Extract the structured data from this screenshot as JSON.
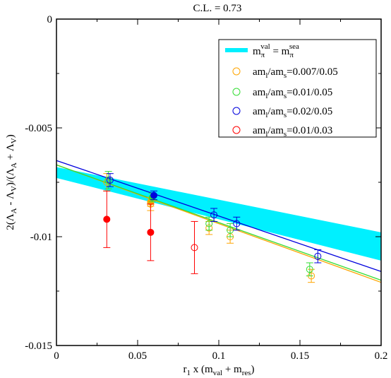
{
  "chart_data": {
    "type": "scatter",
    "title": "C.L. = 0.73",
    "xlabel": "r1 x (mval + mres)",
    "ylabel": "2(ΛA - ΛV)/(ΛA + ΛV)",
    "xlim": [
      0,
      0.2
    ],
    "ylim": [
      -0.015,
      0
    ],
    "x_ticks": [
      "0",
      "0.05",
      "0.1",
      "0.15",
      "0.2"
    ],
    "y_ticks": [
      "0",
      "-0.005",
      "-0.01",
      "-0.015"
    ],
    "grid": false,
    "legend_position": "top-right",
    "band": {
      "name": "mπval = mπsea",
      "color": "#00f0ff",
      "x": [
        0,
        0.2
      ],
      "lower": [
        -0.0073,
        -0.0111
      ],
      "upper": [
        -0.0068,
        -0.0098
      ]
    },
    "series": [
      {
        "name": "aml/ams=0.007/0.05",
        "color": "#ffa500",
        "open": [
          {
            "x": 0.031,
            "y": -0.0075,
            "err": 0.0004
          },
          {
            "x": 0.058,
            "y": -0.0085,
            "err": 0.0003
          },
          {
            "x": 0.094,
            "y": -0.0096,
            "err": 0.0003
          },
          {
            "x": 0.107,
            "y": -0.01,
            "err": 0.0003
          },
          {
            "x": 0.157,
            "y": -0.0118,
            "err": 0.0003
          }
        ],
        "filled": [
          {
            "x": 0.058,
            "y": -0.0084,
            "err": 0.0002
          }
        ],
        "fit": {
          "x": [
            0,
            0.2
          ],
          "y": [
            -0.0067,
            -0.0121
          ]
        }
      },
      {
        "name": "aml/ams=0.01/0.05",
        "color": "#33dd33",
        "open": [
          {
            "x": 0.032,
            "y": -0.0074,
            "err": 0.0004
          },
          {
            "x": 0.094,
            "y": -0.0094,
            "err": 0.0003
          },
          {
            "x": 0.107,
            "y": -0.0097,
            "err": 0.0003
          },
          {
            "x": 0.156,
            "y": -0.0115,
            "err": 0.0003
          }
        ],
        "filled": [
          {
            "x": 0.059,
            "y": -0.0082,
            "err": 0.0002
          }
        ],
        "fit": {
          "x": [
            0,
            0.2
          ],
          "y": [
            -0.0067,
            -0.012
          ]
        }
      },
      {
        "name": "aml/ams=0.02/0.05",
        "color": "#0000dd",
        "open": [
          {
            "x": 0.033,
            "y": -0.0074,
            "err": 0.0003
          },
          {
            "x": 0.097,
            "y": -0.009,
            "err": 0.0003
          },
          {
            "x": 0.111,
            "y": -0.0094,
            "err": 0.0003
          },
          {
            "x": 0.161,
            "y": -0.0109,
            "err": 0.0003
          }
        ],
        "filled": [
          {
            "x": 0.06,
            "y": -0.0081,
            "err": 0.0002
          }
        ],
        "fit": {
          "x": [
            0,
            0.2
          ],
          "y": [
            -0.0065,
            -0.0116
          ]
        }
      },
      {
        "name": "aml/ams=0.01/0.03",
        "color": "#ff0000",
        "open": [
          {
            "x": 0.085,
            "y": -0.0105,
            "err": 0.0012
          }
        ],
        "filled": [
          {
            "x": 0.031,
            "y": -0.0092,
            "err": 0.0013
          },
          {
            "x": 0.058,
            "y": -0.0098,
            "err": 0.0013
          }
        ],
        "fit": null
      }
    ]
  },
  "legend": {
    "band_label": {
      "m": "m",
      "pi": "π",
      "val": "val",
      "eq": " = ",
      "sea": "sea"
    },
    "entries": [
      {
        "main": "am",
        "sub1": "l",
        "mid": "/am",
        "sub2": "s",
        "tail": "=0.007/0.05"
      },
      {
        "main": "am",
        "sub1": "l",
        "mid": "/am",
        "sub2": "s",
        "tail": "=0.01/0.05"
      },
      {
        "main": "am",
        "sub1": "l",
        "mid": "/am",
        "sub2": "s",
        "tail": "=0.02/0.05"
      },
      {
        "main": "am",
        "sub1": "l",
        "mid": "/am",
        "sub2": "s",
        "tail": "=0.01/0.03"
      }
    ]
  },
  "axis_text": {
    "x": {
      "a": "r",
      "b": "1",
      "c": " x (m",
      "d": "val",
      "e": " + m",
      "f": "res",
      "g": ")"
    },
    "y": {
      "a": "2(Λ",
      "b": "A",
      "c": " - Λ",
      "d": "V",
      "e": ")/(Λ",
      "f": "A",
      "g": " + Λ",
      "h": "V",
      "i": ")"
    }
  }
}
